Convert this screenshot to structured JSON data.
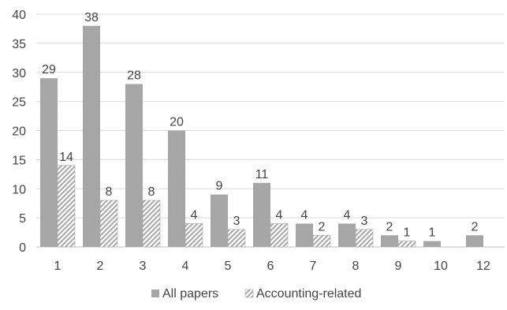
{
  "chart_data": {
    "type": "bar",
    "title": "",
    "xlabel": "",
    "ylabel": "",
    "categories": [
      "1",
      "2",
      "3",
      "4",
      "5",
      "6",
      "7",
      "8",
      "9",
      "10",
      "12"
    ],
    "series": [
      {
        "name": "All papers",
        "color": "#a6a6a6",
        "pattern": "solid",
        "values": [
          29,
          38,
          28,
          20,
          9,
          11,
          4,
          4,
          2,
          1,
          2
        ]
      },
      {
        "name": "Accounting-related",
        "color": "#a6a6a6",
        "pattern": "diagonal-hatch",
        "values": [
          14,
          8,
          8,
          4,
          3,
          4,
          2,
          3,
          1,
          null,
          null
        ]
      }
    ],
    "ylim": [
      0,
      40
    ],
    "yticks": [
      0,
      5,
      10,
      15,
      20,
      25,
      30,
      35,
      40
    ],
    "grid": true,
    "legend_position": "bottom",
    "data_labels": true
  }
}
